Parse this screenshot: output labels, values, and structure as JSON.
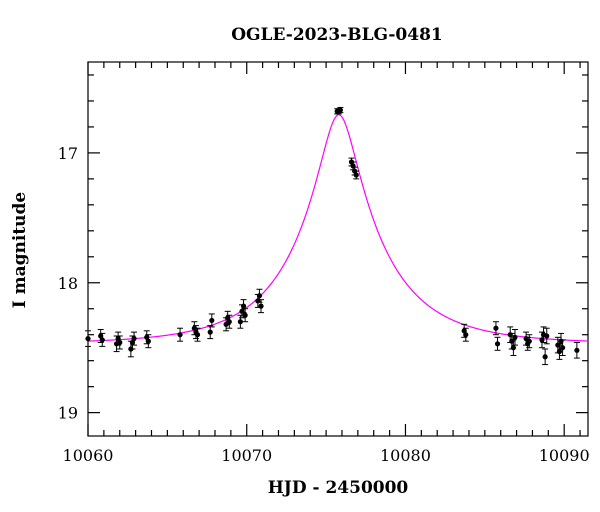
{
  "chart_data": {
    "type": "scatter",
    "title": "OGLE-2023-BLG-0481",
    "xlabel": "HJD - 2450000",
    "ylabel": "I magnitude",
    "xlim": [
      10060,
      10091.5
    ],
    "ylim": [
      19.18,
      16.3
    ],
    "y_inverted": true,
    "x_ticks": [
      10060,
      10070,
      10080,
      10090
    ],
    "x_tick_labels": [
      "10060",
      "10070",
      "10080",
      "10090"
    ],
    "y_ticks": [
      17,
      18,
      19
    ],
    "y_tick_labels": [
      "17",
      "18",
      "19"
    ],
    "grid": false,
    "model_color": "#ff00ff",
    "point_color": "#000000",
    "model": {
      "t0": 10075.8,
      "u0": 0.2,
      "tE": 5.5,
      "baseline": 18.47
    },
    "series": [
      {
        "points": [
          [
            10060.0,
            18.43,
            0.06
          ],
          [
            10060.8,
            18.41,
            0.05
          ],
          [
            10060.9,
            18.44,
            0.05
          ],
          [
            10061.8,
            18.47,
            0.06
          ],
          [
            10061.9,
            18.43,
            0.05
          ],
          [
            10062.0,
            18.46,
            0.05
          ],
          [
            10062.7,
            18.51,
            0.06
          ],
          [
            10062.8,
            18.46,
            0.05
          ],
          [
            10062.9,
            18.43,
            0.05
          ],
          [
            10063.7,
            18.42,
            0.05
          ],
          [
            10063.8,
            18.45,
            0.05
          ],
          [
            10065.8,
            18.4,
            0.05
          ],
          [
            10066.7,
            18.35,
            0.05
          ],
          [
            10066.8,
            18.38,
            0.05
          ],
          [
            10066.9,
            18.4,
            0.05
          ],
          [
            10067.7,
            18.38,
            0.05
          ],
          [
            10067.8,
            18.29,
            0.05
          ],
          [
            10068.7,
            18.32,
            0.05
          ],
          [
            10068.8,
            18.27,
            0.05
          ],
          [
            10068.9,
            18.3,
            0.05
          ],
          [
            10069.6,
            18.3,
            0.05
          ],
          [
            10069.7,
            18.22,
            0.05
          ],
          [
            10069.8,
            18.18,
            0.05
          ],
          [
            10069.9,
            18.25,
            0.05
          ],
          [
            10070.7,
            18.14,
            0.05
          ],
          [
            10070.8,
            18.1,
            0.05
          ],
          [
            10070.9,
            18.18,
            0.05
          ],
          [
            10075.7,
            16.68,
            0.02
          ],
          [
            10075.8,
            16.68,
            0.02
          ],
          [
            10075.9,
            16.67,
            0.02
          ],
          [
            10076.6,
            17.07,
            0.03
          ],
          [
            10076.7,
            17.1,
            0.03
          ],
          [
            10076.8,
            17.14,
            0.03
          ],
          [
            10076.9,
            17.17,
            0.03
          ],
          [
            10083.7,
            18.37,
            0.05
          ],
          [
            10083.8,
            18.4,
            0.05
          ],
          [
            10085.7,
            18.35,
            0.05
          ],
          [
            10085.8,
            18.47,
            0.05
          ],
          [
            10086.6,
            18.4,
            0.06
          ],
          [
            10086.7,
            18.45,
            0.06
          ],
          [
            10086.8,
            18.5,
            0.06
          ],
          [
            10086.9,
            18.42,
            0.06
          ],
          [
            10087.6,
            18.43,
            0.05
          ],
          [
            10087.7,
            18.47,
            0.05
          ],
          [
            10087.8,
            18.45,
            0.05
          ],
          [
            10088.6,
            18.44,
            0.06
          ],
          [
            10088.7,
            18.4,
            0.06
          ],
          [
            10088.8,
            18.57,
            0.06
          ],
          [
            10088.9,
            18.41,
            0.06
          ],
          [
            10089.6,
            18.48,
            0.06
          ],
          [
            10089.7,
            18.53,
            0.06
          ],
          [
            10089.8,
            18.45,
            0.06
          ],
          [
            10089.9,
            18.5,
            0.06
          ],
          [
            10090.8,
            18.52,
            0.06
          ]
        ]
      }
    ]
  }
}
